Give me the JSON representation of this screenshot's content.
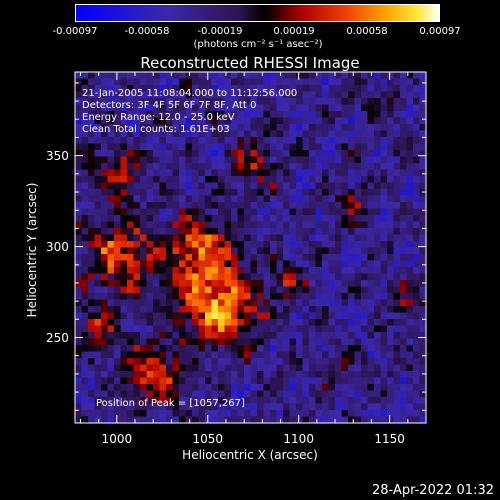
{
  "colorbar": {
    "tick_labels": [
      "-0.00097",
      "-0.00058",
      "-0.00019",
      "0.00019",
      "0.00058",
      "0.00097"
    ],
    "units": "(photons cm⁻² s⁻¹ asec⁻²)"
  },
  "chart_data": {
    "type": "heatmap",
    "title": "Reconstructed RHESSI Image",
    "xlabel": "Heliocentric X (arcsec)",
    "ylabel": "Heliocentric Y (arcsec)",
    "xlim": [
      977,
      1170
    ],
    "ylim": [
      203,
      396
    ],
    "x_ticks": [
      1000,
      1050,
      1100,
      1150
    ],
    "y_ticks": [
      250,
      300,
      350
    ],
    "value_range": [
      -0.00097,
      0.00097
    ],
    "colormap": "blue-black-red-yellow-white",
    "info_lines": [
      "21-Jan-2005 11:08:04.000 to 11:12:56.000",
      "Detectors: 3F 4F 5F 6F 7F 8F, Att 0",
      "Energy Range: 12.0 - 25.0 keV",
      "Clean      Total counts: 1.61E+03"
    ],
    "peak_label": "Position of Peak = [1057,267]",
    "peak_position": [
      1057,
      267
    ]
  },
  "timestamp": "28-Apr-2022 01:32"
}
